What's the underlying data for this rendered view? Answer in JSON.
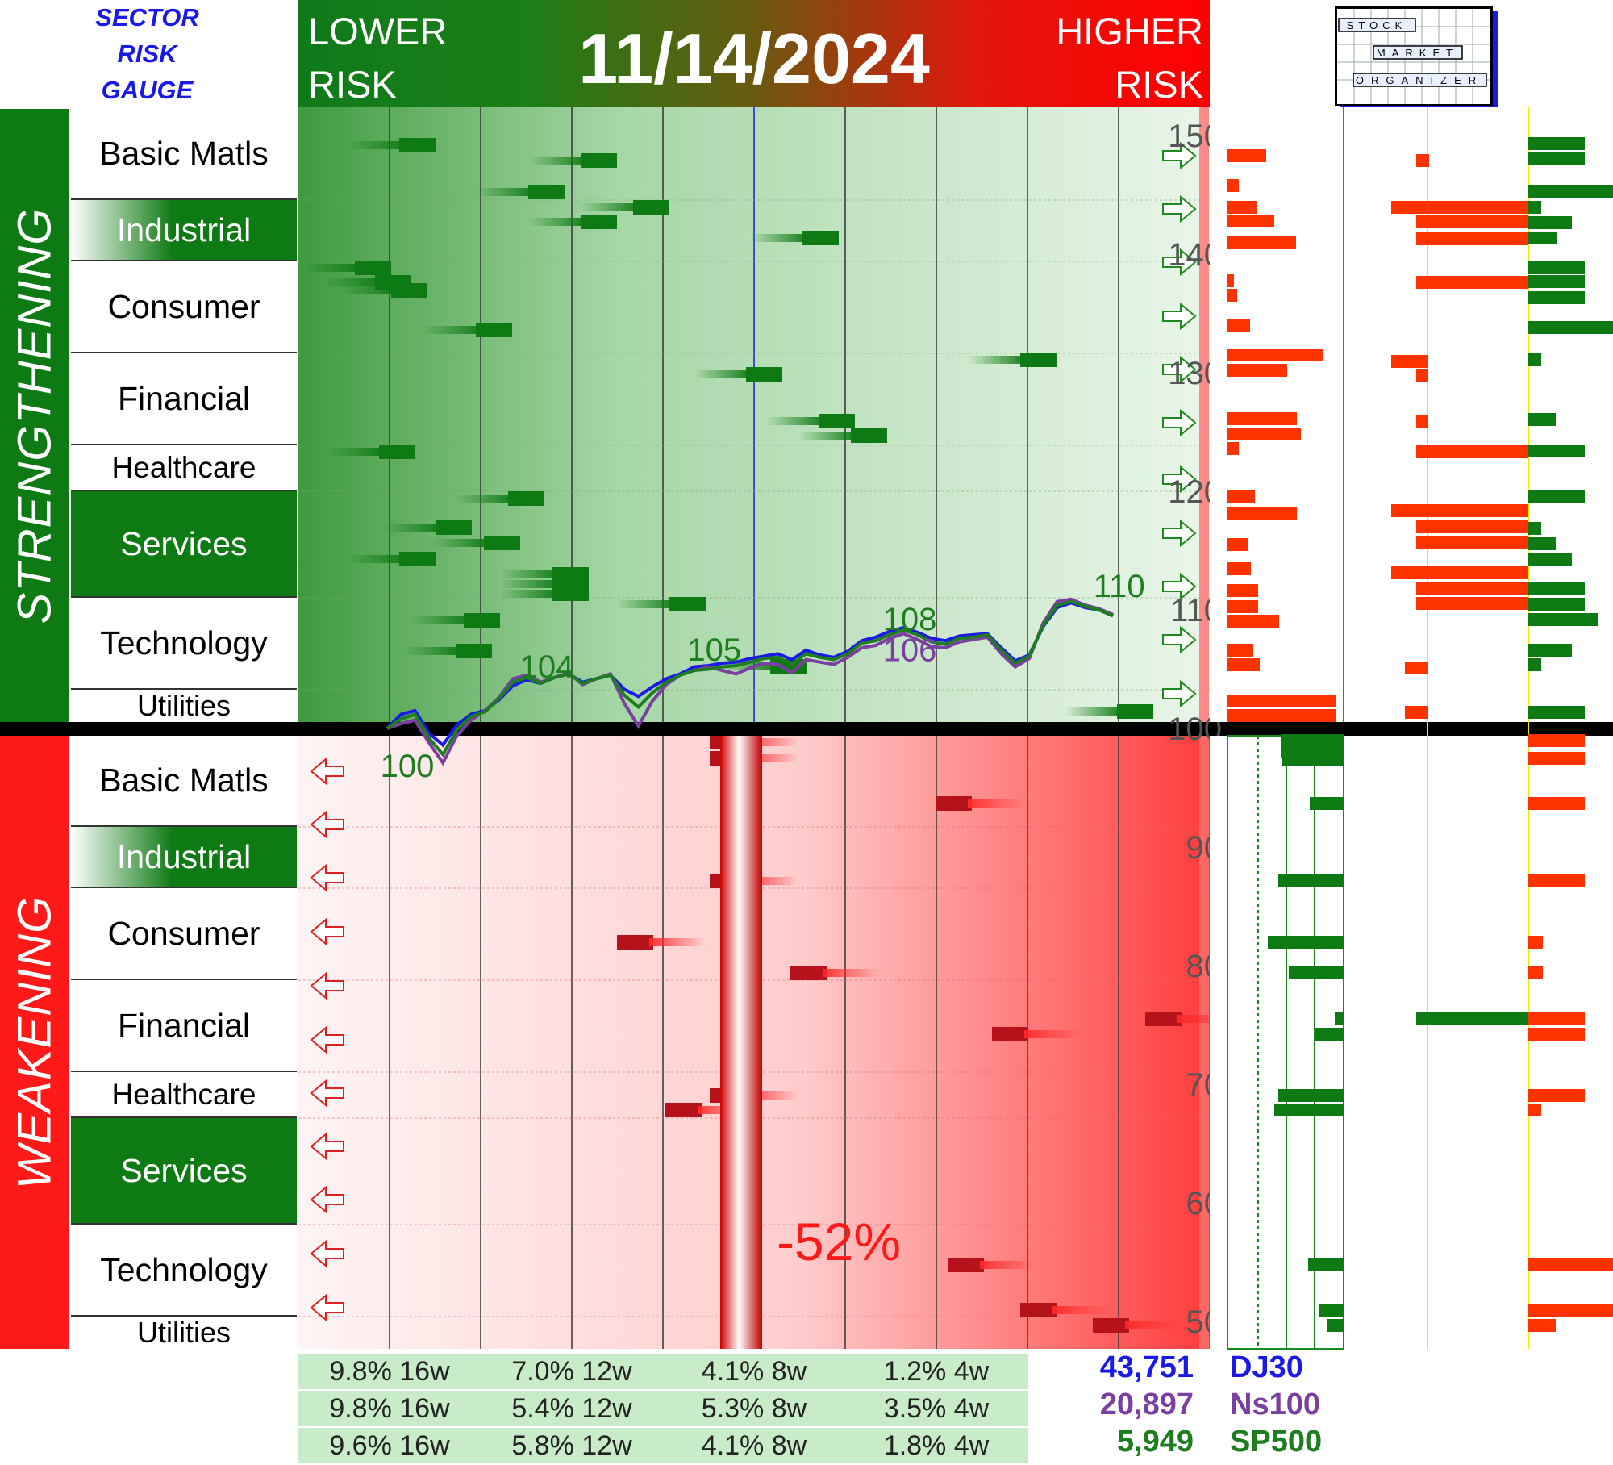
{
  "header": {
    "title_lines": [
      "SECTOR",
      "RISK",
      "GAUGE"
    ],
    "lower_risk": [
      "LOWER",
      "RISK"
    ],
    "higher_risk": [
      "HIGHER",
      "RISK"
    ],
    "date": "11/14/2024",
    "logo_words": [
      "STOCK",
      "MARKET",
      "ORGANIZER"
    ]
  },
  "groups": {
    "strengthening": "STRENGTHENING",
    "weakening": "WEAKENING"
  },
  "sectors": [
    "Basic Matls",
    "Industrial",
    "Consumer",
    "Financial",
    "Healthcare",
    "Services",
    "Technology",
    "Utilities"
  ],
  "annotation": {
    "drawdown": "-52%"
  },
  "chart_data": {
    "type": "line",
    "y_axis_labels": [
      150,
      140,
      130,
      120,
      110,
      100,
      90,
      80,
      70,
      60,
      50
    ],
    "ylim": [
      48,
      152
    ],
    "series": [
      {
        "name": "DJ30",
        "color": "#1a1ae6",
        "values": [
          100,
          101.2,
          101.5,
          99.6,
          98.6,
          100.3,
          101.2,
          101.5,
          102.4,
          103.6,
          104.1,
          103.8,
          104.3,
          104.6,
          103.9,
          104.2,
          104.5,
          103.3,
          102.7,
          103.5,
          104.2,
          104.6,
          105.2,
          105.3,
          105.5,
          105.6,
          105.9,
          106.1,
          106.3,
          105.8,
          106.6,
          106.2,
          106.0,
          106.5,
          107.4,
          107.7,
          108.2,
          108.5,
          108.1,
          107.6,
          107.4,
          107.8,
          107.9,
          108.0,
          106.8,
          105.7,
          106.2,
          108.6,
          110.2,
          110.6,
          110.2,
          110.0,
          109.5
        ]
      },
      {
        "name": "Ns100",
        "color": "#7a3fa0",
        "values": [
          100,
          100.4,
          100.7,
          98.8,
          97.1,
          99.4,
          100.7,
          101.5,
          102.6,
          104.2,
          104.5,
          103.9,
          104.3,
          104.7,
          103.7,
          104.2,
          104.6,
          102.1,
          100.2,
          102.3,
          103.7,
          104.5,
          104.9,
          105.2,
          104.9,
          104.6,
          105.1,
          105.5,
          105.4,
          104.7,
          105.8,
          105.6,
          105.4,
          106.0,
          106.8,
          107.0,
          107.6,
          108.0,
          107.5,
          106.9,
          106.8,
          107.3,
          107.5,
          107.7,
          106.3,
          105.2,
          105.9,
          108.9,
          110.7,
          110.9,
          110.4,
          110.1,
          109.6
        ]
      },
      {
        "name": "SP500",
        "color": "#1e7d1e",
        "values": [
          100,
          100.8,
          101.2,
          99.2,
          97.8,
          99.9,
          101.0,
          101.4,
          102.5,
          103.9,
          104.3,
          103.8,
          104.3,
          104.6,
          103.8,
          104.2,
          104.5,
          102.8,
          101.8,
          103.0,
          103.9,
          104.5,
          104.9,
          105.0,
          105.2,
          105.3,
          105.6,
          105.9,
          106.0,
          105.4,
          106.3,
          106.0,
          105.8,
          106.3,
          107.2,
          107.4,
          107.9,
          108.3,
          107.9,
          107.3,
          107.1,
          107.6,
          107.7,
          107.9,
          106.6,
          105.5,
          106.1,
          108.7,
          110.4,
          110.7,
          110.3,
          110.0,
          109.5
        ]
      }
    ],
    "point_labels": [
      {
        "text": "100",
        "series": "SP500"
      },
      {
        "text": "104",
        "series": "SP500"
      },
      {
        "text": "105",
        "series": "SP500"
      },
      {
        "text": "108",
        "series": "SP500"
      },
      {
        "text": "106",
        "series": "Ns100"
      },
      {
        "text": "110",
        "series": "SP500"
      }
    ]
  },
  "footer": {
    "rows": [
      {
        "cells": [
          "9.8% 16w",
          "7.0% 12w",
          "4.1% 8w",
          "1.2% 4w"
        ],
        "value": "43,751",
        "name": "DJ30",
        "color": "#1a1ae6"
      },
      {
        "cells": [
          "9.8% 16w",
          "5.4% 12w",
          "5.3% 8w",
          "3.5% 4w"
        ],
        "value": "20,897",
        "name": "Ns100",
        "color": "#7a3fa0"
      },
      {
        "cells": [
          "9.6% 16w",
          "5.8% 12w",
          "4.1% 8w",
          "1.8% 4w"
        ],
        "value": "5,949",
        "name": "SP500",
        "color": "#1e7d1e"
      }
    ]
  },
  "colors": {
    "strong": "#0e7a14",
    "weak": "#ff1a1a",
    "bar_red": "#ff3300",
    "bar_green": "#0e7a14"
  }
}
